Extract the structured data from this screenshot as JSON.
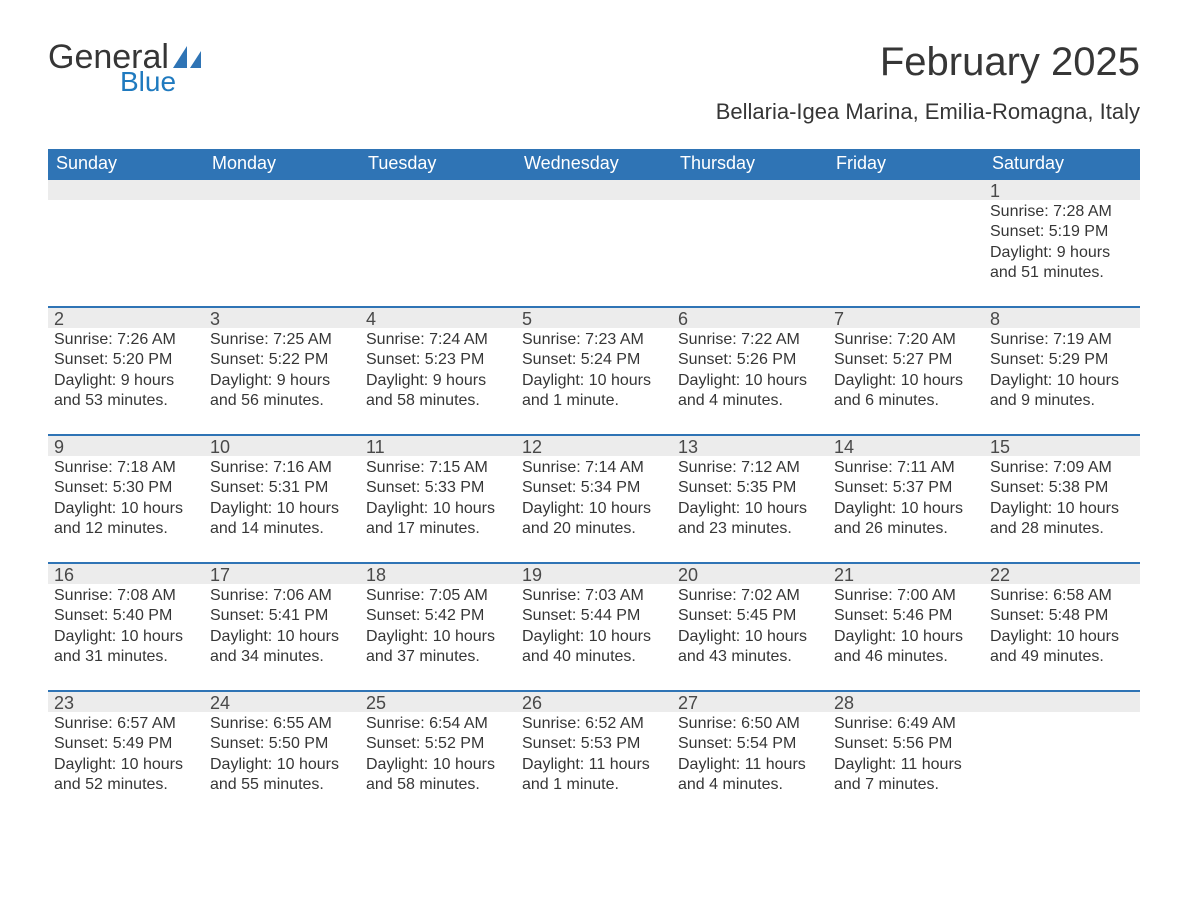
{
  "logo": {
    "word1": "General",
    "word2": "Blue"
  },
  "title": {
    "month": "February 2025",
    "location": "Bellaria-Igea Marina, Emilia-Romagna, Italy"
  },
  "colors": {
    "header_bg": "#2f74b5",
    "header_text": "#ffffff",
    "band_bg": "#ececec",
    "band_border": "#2f74b5",
    "body_text": "#363636",
    "logo_blue": "#1f7abf",
    "page_bg": "#ffffff"
  },
  "typography": {
    "title_fontsize": 40,
    "location_fontsize": 22,
    "dayheader_fontsize": 18,
    "daynum_fontsize": 18,
    "body_fontsize": 16,
    "font_family": "Segoe UI"
  },
  "layout": {
    "columns": 7,
    "rows": 5,
    "aspect_ratio": 1.29,
    "leading_blanks": 6
  },
  "labels": {
    "sunrise": "Sunrise: ",
    "sunset": "Sunset: ",
    "daylight": "Daylight: "
  },
  "day_headers": [
    "Sunday",
    "Monday",
    "Tuesday",
    "Wednesday",
    "Thursday",
    "Friday",
    "Saturday"
  ],
  "days": [
    {
      "n": "1",
      "sunrise": "7:28 AM",
      "sunset": "5:19 PM",
      "daylight": "9 hours and 51 minutes."
    },
    {
      "n": "2",
      "sunrise": "7:26 AM",
      "sunset": "5:20 PM",
      "daylight": "9 hours and 53 minutes."
    },
    {
      "n": "3",
      "sunrise": "7:25 AM",
      "sunset": "5:22 PM",
      "daylight": "9 hours and 56 minutes."
    },
    {
      "n": "4",
      "sunrise": "7:24 AM",
      "sunset": "5:23 PM",
      "daylight": "9 hours and 58 minutes."
    },
    {
      "n": "5",
      "sunrise": "7:23 AM",
      "sunset": "5:24 PM",
      "daylight": "10 hours and 1 minute."
    },
    {
      "n": "6",
      "sunrise": "7:22 AM",
      "sunset": "5:26 PM",
      "daylight": "10 hours and 4 minutes."
    },
    {
      "n": "7",
      "sunrise": "7:20 AM",
      "sunset": "5:27 PM",
      "daylight": "10 hours and 6 minutes."
    },
    {
      "n": "8",
      "sunrise": "7:19 AM",
      "sunset": "5:29 PM",
      "daylight": "10 hours and 9 minutes."
    },
    {
      "n": "9",
      "sunrise": "7:18 AM",
      "sunset": "5:30 PM",
      "daylight": "10 hours and 12 minutes."
    },
    {
      "n": "10",
      "sunrise": "7:16 AM",
      "sunset": "5:31 PM",
      "daylight": "10 hours and 14 minutes."
    },
    {
      "n": "11",
      "sunrise": "7:15 AM",
      "sunset": "5:33 PM",
      "daylight": "10 hours and 17 minutes."
    },
    {
      "n": "12",
      "sunrise": "7:14 AM",
      "sunset": "5:34 PM",
      "daylight": "10 hours and 20 minutes."
    },
    {
      "n": "13",
      "sunrise": "7:12 AM",
      "sunset": "5:35 PM",
      "daylight": "10 hours and 23 minutes."
    },
    {
      "n": "14",
      "sunrise": "7:11 AM",
      "sunset": "5:37 PM",
      "daylight": "10 hours and 26 minutes."
    },
    {
      "n": "15",
      "sunrise": "7:09 AM",
      "sunset": "5:38 PM",
      "daylight": "10 hours and 28 minutes."
    },
    {
      "n": "16",
      "sunrise": "7:08 AM",
      "sunset": "5:40 PM",
      "daylight": "10 hours and 31 minutes."
    },
    {
      "n": "17",
      "sunrise": "7:06 AM",
      "sunset": "5:41 PM",
      "daylight": "10 hours and 34 minutes."
    },
    {
      "n": "18",
      "sunrise": "7:05 AM",
      "sunset": "5:42 PM",
      "daylight": "10 hours and 37 minutes."
    },
    {
      "n": "19",
      "sunrise": "7:03 AM",
      "sunset": "5:44 PM",
      "daylight": "10 hours and 40 minutes."
    },
    {
      "n": "20",
      "sunrise": "7:02 AM",
      "sunset": "5:45 PM",
      "daylight": "10 hours and 43 minutes."
    },
    {
      "n": "21",
      "sunrise": "7:00 AM",
      "sunset": "5:46 PM",
      "daylight": "10 hours and 46 minutes."
    },
    {
      "n": "22",
      "sunrise": "6:58 AM",
      "sunset": "5:48 PM",
      "daylight": "10 hours and 49 minutes."
    },
    {
      "n": "23",
      "sunrise": "6:57 AM",
      "sunset": "5:49 PM",
      "daylight": "10 hours and 52 minutes."
    },
    {
      "n": "24",
      "sunrise": "6:55 AM",
      "sunset": "5:50 PM",
      "daylight": "10 hours and 55 minutes."
    },
    {
      "n": "25",
      "sunrise": "6:54 AM",
      "sunset": "5:52 PM",
      "daylight": "10 hours and 58 minutes."
    },
    {
      "n": "26",
      "sunrise": "6:52 AM",
      "sunset": "5:53 PM",
      "daylight": "11 hours and 1 minute."
    },
    {
      "n": "27",
      "sunrise": "6:50 AM",
      "sunset": "5:54 PM",
      "daylight": "11 hours and 4 minutes."
    },
    {
      "n": "28",
      "sunrise": "6:49 AM",
      "sunset": "5:56 PM",
      "daylight": "11 hours and 7 minutes."
    }
  ]
}
